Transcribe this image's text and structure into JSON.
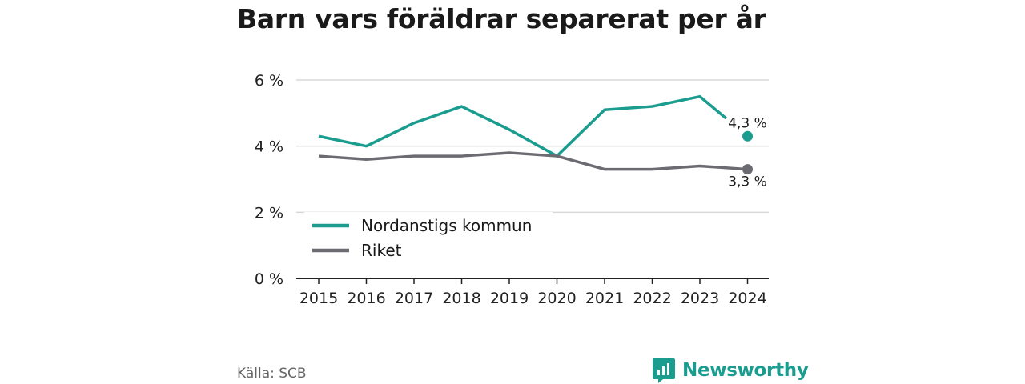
{
  "header": {
    "title": "Barn vars föräldrar separerat per år"
  },
  "footer": {
    "source": "Källa: SCB",
    "brand": "Newsworthy"
  },
  "colors": {
    "teal": "#1a9c8f",
    "gray": "#6d6b72",
    "grid": "#d9d9d9",
    "axis": "#222222"
  },
  "chart_data": {
    "type": "line",
    "title": "Barn vars föräldrar separerat per år",
    "x": [
      "2015",
      "2016",
      "2017",
      "2018",
      "2019",
      "2020",
      "2021",
      "2022",
      "2023",
      "2024"
    ],
    "y_ticks": [
      "0 %",
      "2 %",
      "4 %",
      "6 %"
    ],
    "ylim": [
      0,
      6
    ],
    "grid": true,
    "legend_position": "bottom-left",
    "series": [
      {
        "name": "Nordanstigs kommun",
        "color": "#1a9c8f",
        "values": [
          4.3,
          4.0,
          4.7,
          5.2,
          4.5,
          3.7,
          5.1,
          5.2,
          5.5,
          4.3
        ],
        "end_label": "4,3 %"
      },
      {
        "name": "Riket",
        "color": "#6d6b72",
        "values": [
          3.7,
          3.6,
          3.7,
          3.7,
          3.8,
          3.7,
          3.3,
          3.3,
          3.4,
          3.3
        ],
        "end_label": "3,3 %"
      }
    ]
  }
}
